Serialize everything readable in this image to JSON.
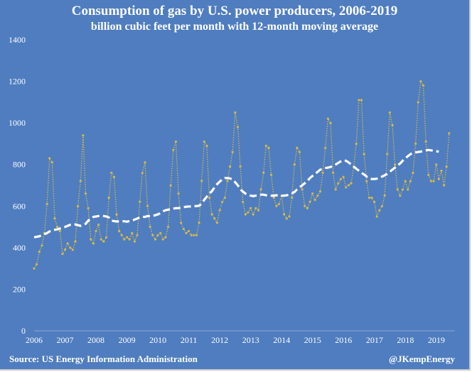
{
  "header": {
    "title": "Consumption of gas by U.S. power producers, 2006-2019",
    "subtitle": "billion cubic feet per month with 12-month moving average"
  },
  "footer": {
    "source": "Source: US Energy Information Administration",
    "handle": "@JKempEnergy"
  },
  "colors": {
    "background": "#4f7dbf",
    "monthly_series": "#d4b94a",
    "average_series": "#ffffff",
    "text": "#ffffff"
  },
  "chart_data": {
    "type": "line",
    "xlabel": "",
    "ylabel": "",
    "xlim": [
      2006,
      2019.6
    ],
    "ylim": [
      0,
      1400
    ],
    "y_ticks": [
      0,
      200,
      400,
      600,
      800,
      1000,
      1200,
      1400
    ],
    "x_ticks": [
      "2006",
      "2007",
      "2008",
      "2009",
      "2010",
      "2011",
      "2012",
      "2013",
      "2014",
      "2015",
      "2016",
      "2017",
      "2018",
      "2019"
    ],
    "grid": false,
    "legend": "none",
    "x_start": 2006.0,
    "x_step": 0.0833,
    "series": [
      {
        "style": "dotted line with markers",
        "values": [
          300,
          320,
          380,
          410,
          470,
          610,
          830,
          810,
          540,
          500,
          480,
          370,
          390,
          420,
          400,
          390,
          430,
          600,
          720,
          940,
          660,
          590,
          440,
          420,
          480,
          510,
          440,
          430,
          450,
          640,
          760,
          740,
          560,
          480,
          460,
          440,
          450,
          440,
          470,
          430,
          460,
          620,
          760,
          810,
          600,
          500,
          460,
          440,
          460,
          470,
          440,
          450,
          500,
          700,
          870,
          910,
          660,
          520,
          490,
          470,
          480,
          460,
          460,
          460,
          520,
          720,
          910,
          890,
          640,
          560,
          540,
          520,
          580,
          620,
          640,
          720,
          790,
          860,
          1050,
          980,
          790,
          620,
          560,
          570,
          590,
          560,
          590,
          580,
          680,
          760,
          890,
          880,
          750,
          640,
          600,
          610,
          650,
          560,
          540,
          550,
          640,
          800,
          880,
          860,
          680,
          600,
          590,
          620,
          660,
          630,
          650,
          670,
          760,
          880,
          1020,
          1000,
          760,
          680,
          710,
          730,
          740,
          690,
          700,
          710,
          790,
          900,
          1110,
          1110,
          850,
          720,
          640,
          640,
          620,
          550,
          580,
          600,
          650,
          850,
          1050,
          990,
          800,
          680,
          650,
          680,
          720,
          680,
          720,
          760,
          900,
          1100,
          1200,
          1180,
          910,
          750,
          720,
          720,
          800,
          730,
          770,
          700,
          790,
          950
        ]
      },
      {
        "style": "white dashed line",
        "values": [
          450,
          452,
          455,
          460,
          465,
          470,
          478,
          482,
          486,
          488,
          492,
          495,
          500,
          505,
          510,
          510,
          512,
          508,
          505,
          508,
          515,
          530,
          540,
          548,
          550,
          552,
          553,
          552,
          550,
          545,
          530,
          528,
          526,
          527,
          528,
          527,
          525,
          528,
          530,
          535,
          540,
          545,
          548,
          548,
          552,
          552,
          553,
          556,
          560,
          566,
          575,
          580,
          583,
          585,
          588,
          590,
          590,
          592,
          595,
          597,
          598,
          598,
          600,
          600,
          602,
          612,
          630,
          645,
          660,
          672,
          690,
          705,
          718,
          728,
          735,
          735,
          733,
          728,
          715,
          700,
          680,
          670,
          660,
          655,
          650,
          648,
          650,
          652,
          655,
          655,
          652,
          650,
          650,
          650,
          652,
          652,
          650,
          650,
          652,
          655,
          660,
          668,
          680,
          690,
          700,
          710,
          720,
          735,
          745,
          755,
          765,
          775,
          780,
          783,
          785,
          788,
          795,
          800,
          808,
          815,
          820,
          818,
          810,
          800,
          790,
          780,
          770,
          760,
          752,
          742,
          735,
          730,
          730,
          732,
          736,
          742,
          748,
          755,
          765,
          775,
          785,
          795,
          805,
          818,
          830,
          840,
          850,
          855,
          858,
          860,
          862,
          865,
          868,
          870,
          868,
          866,
          864,
          862
        ]
      }
    ]
  }
}
